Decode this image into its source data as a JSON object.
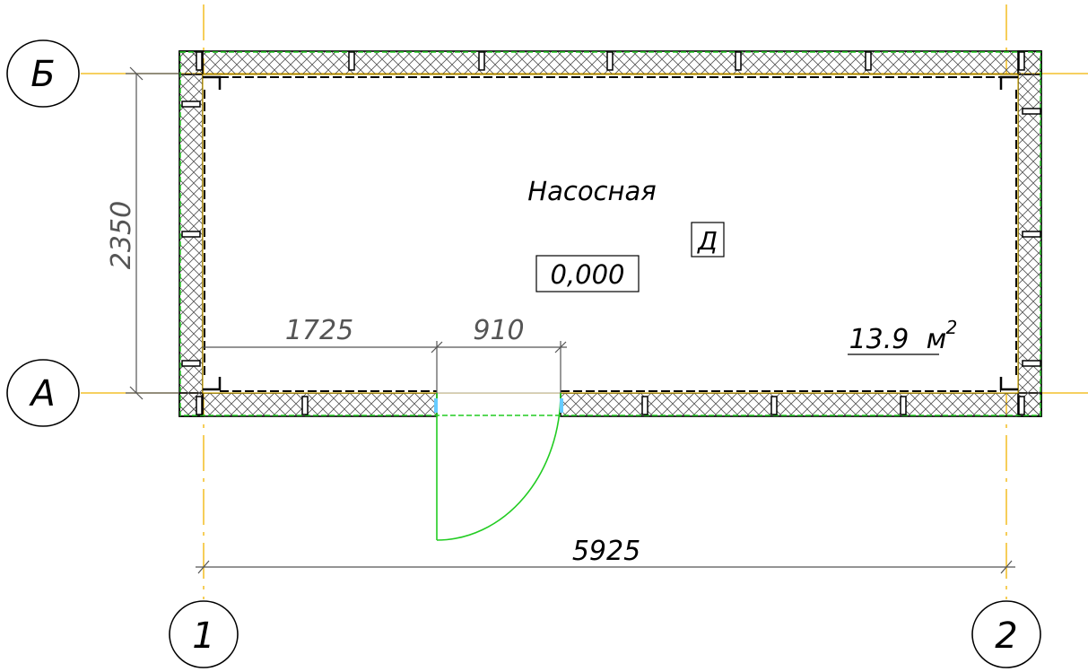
{
  "room": {
    "name": "Насосная",
    "level": "0,000",
    "category": "Д",
    "area_value": "13.9",
    "area_unit": "м",
    "area_exp": "2"
  },
  "axes": {
    "vertical": [
      "1",
      "2"
    ],
    "horizontal": [
      "А",
      "Б"
    ]
  },
  "dimensions": {
    "overall_width": "5925",
    "overall_depth": "2350",
    "door_offset": "1725",
    "door_width": "910"
  },
  "colors": {
    "axis": "#f0b400",
    "insulation": "#22cc22",
    "door": "#22cc22",
    "wall": "#000000"
  }
}
